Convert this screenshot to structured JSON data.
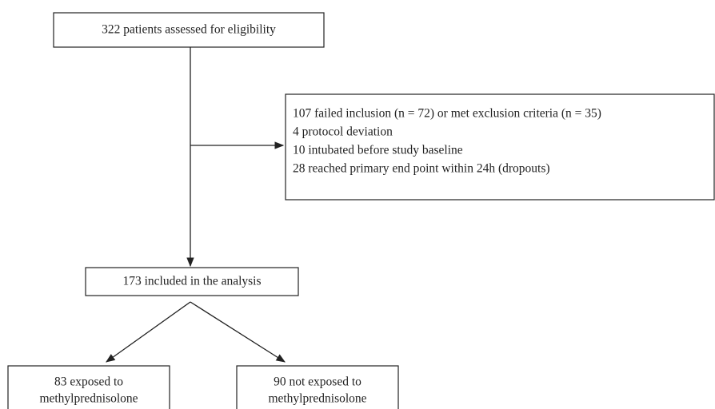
{
  "nodes": [
    {
      "lines": [
        "322 patients assessed for eligibility"
      ]
    },
    {
      "lines": [
        "107 failed inclusion (n = 72) or met exclusion criteria (n = 35)",
        "4 protocol deviation",
        "10 intubated before study baseline",
        "28 reached primary end point within 24h (dropouts)"
      ]
    },
    {
      "lines": [
        "173 included in the analysis"
      ]
    },
    {
      "lines": [
        "83 exposed to",
        "methylprednisolone"
      ]
    },
    {
      "lines": [
        "90 not exposed to",
        "methylprednisolone"
      ]
    }
  ]
}
